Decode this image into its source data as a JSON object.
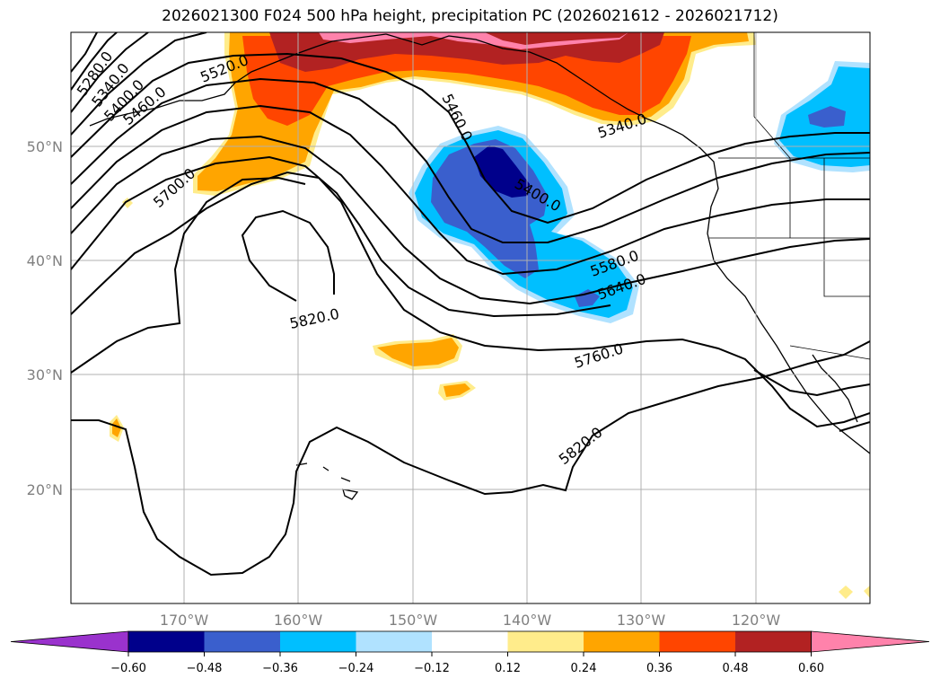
{
  "title": "2026021300 F024 500 hPa height, precipitation PC (2026021612 - 2026021712)",
  "lat_labels": [
    "50°N",
    "40°N",
    "30°N",
    "20°N"
  ],
  "lon_labels": [
    "170°W",
    "160°W",
    "150°W",
    "140°W",
    "130°W",
    "120°W"
  ],
  "contour_labels": [
    "5280.0",
    "5340.0",
    "5400.0",
    "5460.0",
    "5520.0",
    "5700.0",
    "5460.0",
    "5400.0",
    "5340.0",
    "5580.0",
    "5640.0",
    "5820.0",
    "5760.0",
    "5820.0"
  ],
  "colorbar": {
    "ticks": [
      "−0.60",
      "−0.48",
      "−0.36",
      "−0.24",
      "−0.12",
      "0.12",
      "0.24",
      "0.36",
      "0.48",
      "0.60"
    ],
    "colors": [
      "#9a32cd",
      "#00008b",
      "#3a5fcd",
      "#00bfff",
      "#b0e2ff",
      "#ffffff",
      "#ffec8b",
      "#ffa500",
      "#ff4500",
      "#b22222",
      "#ff82ab"
    ]
  }
}
